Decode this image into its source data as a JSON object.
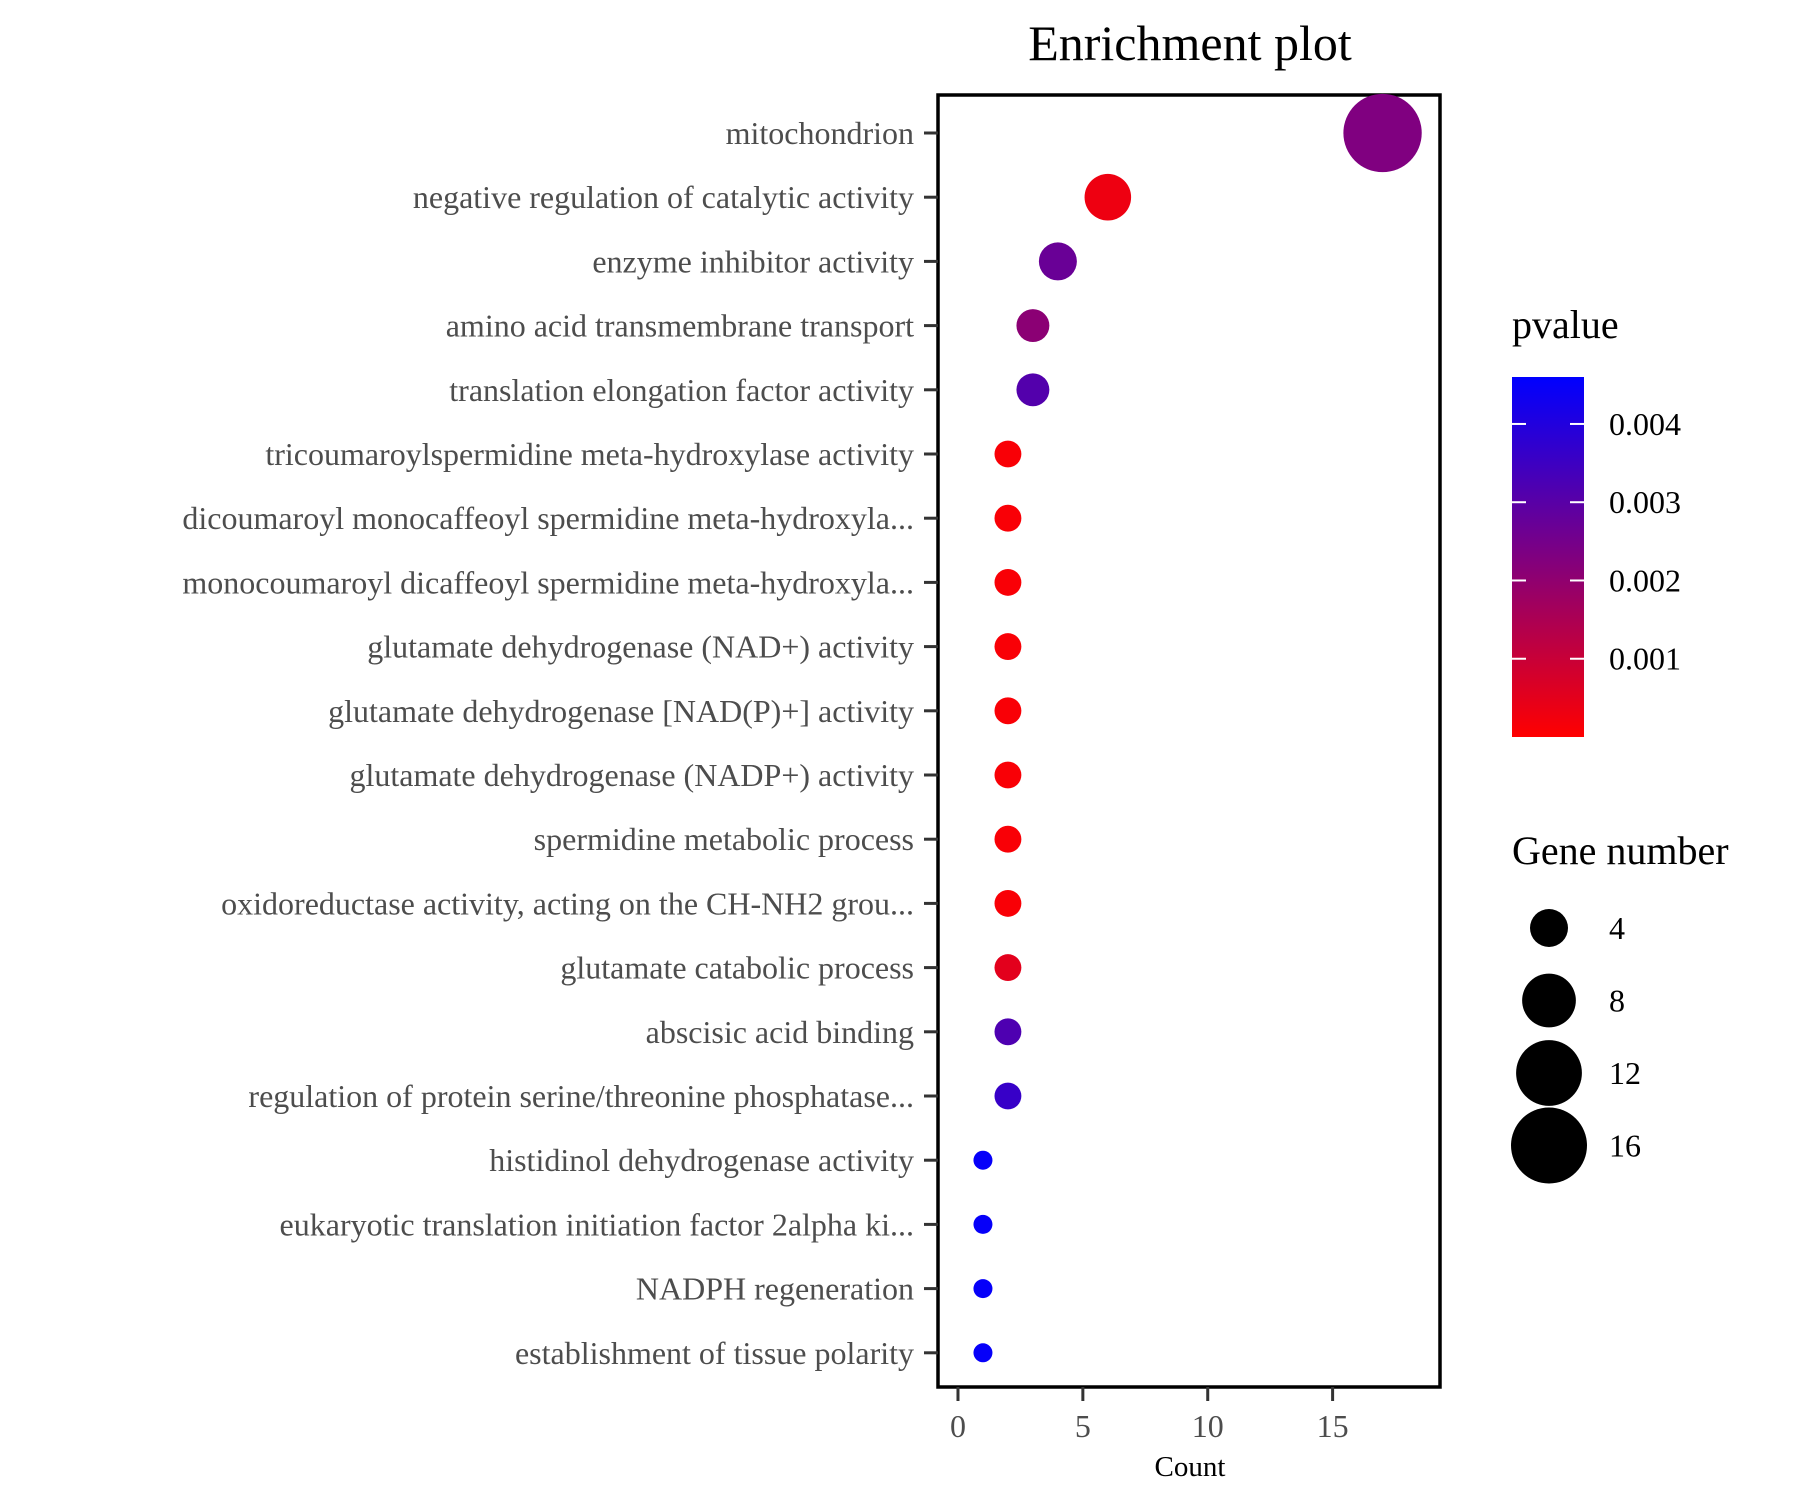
{
  "chart_data": {
    "type": "scatter",
    "title": "Enrichment plot",
    "xlabel": "Count",
    "ylabel": "",
    "xlim": [
      -0.8,
      19.3
    ],
    "xticks": [
      0,
      5,
      10,
      15
    ],
    "grid": false,
    "categories": [
      "mitochondrion",
      "negative regulation of catalytic activity",
      "enzyme inhibitor activity",
      "amino acid transmembrane transport",
      "translation elongation factor activity",
      "tricoumaroylspermidine meta-hydroxylase activity",
      "dicoumaroyl monocaffeoyl spermidine meta-hydroxyla...",
      "monocoumaroyl dicaffeoyl spermidine meta-hydroxyla...",
      "glutamate dehydrogenase (NAD+) activity",
      "glutamate dehydrogenase [NAD(P)+] activity",
      "glutamate dehydrogenase (NADP+) activity",
      "spermidine metabolic process",
      "oxidoreductase activity, acting on the CH-NH2 grou...",
      "glutamate catabolic process",
      "abscisic acid binding",
      "regulation of protein serine/threonine phosphatase...",
      "histidinol dehydrogenase activity",
      "eukaryotic translation initiation factor 2alpha ki...",
      "NADPH regeneration",
      "establishment of tissue polarity"
    ],
    "values": [
      17,
      6,
      4,
      3,
      3,
      2,
      2,
      2,
      2,
      2,
      2,
      2,
      2,
      2,
      2,
      2,
      1,
      1,
      1,
      1
    ],
    "pvalues": [
      0.0023,
      0.0003,
      0.0027,
      0.0021,
      0.0031,
      0.0001,
      0.0001,
      0.0001,
      0.0001,
      0.0001,
      0.0001,
      0.0001,
      0.0001,
      0.0005,
      0.0032,
      0.0036,
      0.0045,
      0.0045,
      0.0045,
      0.0045
    ],
    "color_legend": {
      "title": "pvalue",
      "min": 0.0,
      "max": 0.0046,
      "ticks": [
        0.001,
        0.002,
        0.003,
        0.004
      ],
      "tick_labels": [
        "0.001",
        "0.002",
        "0.003",
        "0.004"
      ],
      "low_color": "#FF0000",
      "high_color": "#0000FF"
    },
    "size_legend": {
      "title": "Gene number",
      "values": [
        4,
        8,
        12,
        16
      ],
      "labels": [
        "4",
        "8",
        "12",
        "16"
      ]
    },
    "legend_position": "right"
  }
}
